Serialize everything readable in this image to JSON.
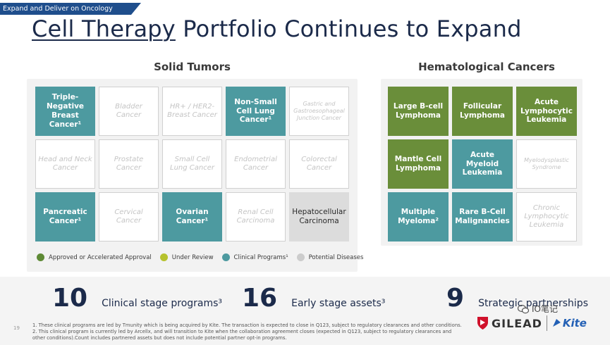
{
  "header": {
    "banner": "Expand and Deliver on Oncology Programs",
    "title_underlined": "Cell Therapy",
    "title_rest": " Portfolio Continues to Expand"
  },
  "solid_tumors": {
    "heading": "Solid Tumors",
    "cells": [
      {
        "label": "Triple-\nNegative\nBreast\nCancer¹",
        "status": "clinical"
      },
      {
        "label": "Bladder\nCancer",
        "status": "potential"
      },
      {
        "label": "HR+ / HER2-\nBreast Cancer",
        "status": "potential"
      },
      {
        "label": "Non-Small\nCell Lung\nCancer¹",
        "status": "clinical"
      },
      {
        "label": "Gastric and\nGastroesophageal\nJunction Cancer",
        "status": "potential",
        "small": true
      },
      {
        "label": "Head and Neck\nCancer",
        "status": "potential"
      },
      {
        "label": "Prostate\nCancer",
        "status": "potential"
      },
      {
        "label": "Small Cell\nLung Cancer",
        "status": "potential"
      },
      {
        "label": "Endometrial\nCancer",
        "status": "potential"
      },
      {
        "label": "Colorectal\nCancer",
        "status": "potential"
      },
      {
        "label": "Pancreatic\nCancer¹",
        "status": "clinical"
      },
      {
        "label": "Cervical\nCancer",
        "status": "potential"
      },
      {
        "label": "Ovarian\nCancer¹",
        "status": "clinical"
      },
      {
        "label": "Renal Cell\nCarcinoma",
        "status": "potential"
      },
      {
        "label": "Hepatocellular\nCarcinoma",
        "status": "review"
      }
    ]
  },
  "heme_cancers": {
    "heading": "Hematological Cancers",
    "cells": [
      {
        "label": "Large B-cell\nLymphoma",
        "status": "approved"
      },
      {
        "label": "Follicular\nLymphoma",
        "status": "approved"
      },
      {
        "label": "Acute\nLymphocytic\nLeukemia",
        "status": "approved"
      },
      {
        "label": "Mantle Cell\nLymphoma",
        "status": "approved"
      },
      {
        "label": "Acute\nMyeloid\nLeukemia",
        "status": "clinical"
      },
      {
        "label": "Myelodysplastic\nSyndrome",
        "status": "potential",
        "small": true
      },
      {
        "label": "Multiple\nMyeloma²",
        "status": "clinical"
      },
      {
        "label": "Rare B-Cell\nMalignancies",
        "status": "clinical"
      },
      {
        "label": "Chronic\nLymphocytic\nLeukemia",
        "status": "potential"
      }
    ]
  },
  "legend": [
    {
      "label": "Approved or Accelerated Approval",
      "color": "#5e8a35"
    },
    {
      "label": "Under Review",
      "color": "#b6c22e"
    },
    {
      "label": "Clinical Programs¹",
      "color": "#4d9aa0"
    },
    {
      "label": "Potential Diseases",
      "color": "#cccccc"
    }
  ],
  "stats": [
    {
      "number": "10",
      "label": "Clinical stage programs³"
    },
    {
      "number": "16",
      "label": "Early stage assets³"
    },
    {
      "number": "9",
      "label": "Strategic partnerships"
    }
  ],
  "footnotes": {
    "line1": "1. These clinical programs are led by Tmunity which is being acquired by Kite. The transaction is expected to close in Q123, subject to regulatory clearances and other conditions.",
    "line2": "2. This clinical program is currently led by Arcellx, and will transition to Kite when the collaboration agreement closes (expected in Q123, subject to regulatory clearances and other conditions).Count includes partnered assets but does not include potential partner opt-in programs."
  },
  "page_number": "19",
  "logos": {
    "gilead": "GILEAD",
    "kite": "Kite"
  },
  "watermark": "IO笔记",
  "colors": {
    "clinical": "#4d9aa0",
    "approved": "#6a8e3a",
    "title": "#1b2a4a",
    "banner": "#1f4e8c"
  }
}
